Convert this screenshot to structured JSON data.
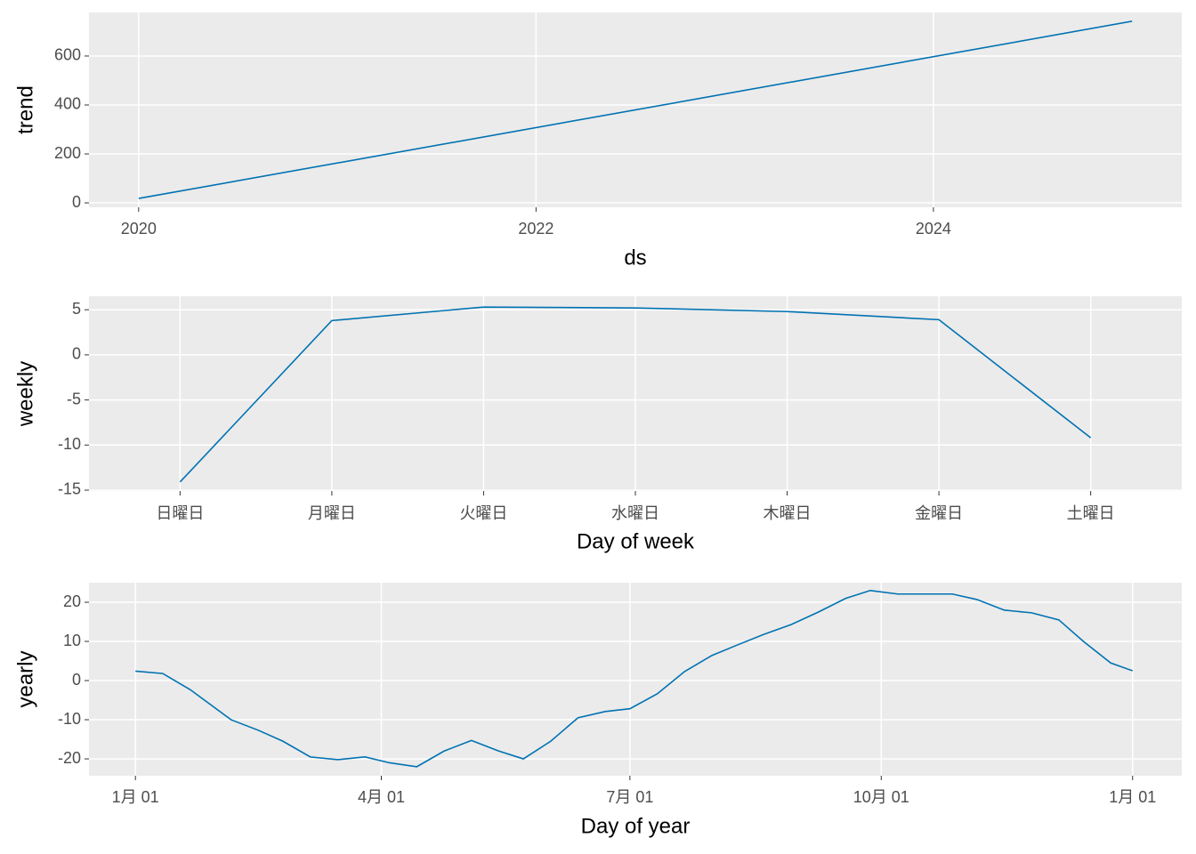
{
  "chart_data": [
    {
      "type": "line",
      "xlabel": "ds",
      "ylabel": "trend",
      "x": [
        2020,
        2025
      ],
      "series": [
        {
          "name": "trend",
          "color": "#0072B2",
          "values": [
            18,
            742
          ]
        }
      ],
      "xlim": [
        2019.75,
        2025.25
      ],
      "xticks": [
        2020,
        2022,
        2024
      ],
      "ylim": [
        -18,
        778
      ],
      "yticks": [
        0,
        200,
        400,
        600
      ],
      "grid": true
    },
    {
      "type": "line",
      "xlabel": "Day of week",
      "ylabel": "weekly",
      "categories": [
        "日曜日",
        "月曜日",
        "火曜日",
        "水曜日",
        "木曜日",
        "金曜日",
        "土曜日"
      ],
      "series": [
        {
          "name": "weekly",
          "color": "#0072B2",
          "values": [
            -14.1,
            3.8,
            5.3,
            5.2,
            4.8,
            3.9,
            -9.2
          ]
        }
      ],
      "ylim": [
        -15.1,
        6.5
      ],
      "yticks": [
        -15,
        -10,
        -5,
        0,
        5
      ],
      "grid": true
    },
    {
      "type": "line",
      "xlabel": "Day of year",
      "ylabel": "yearly",
      "x": [
        0,
        10,
        20,
        35,
        45,
        54,
        64,
        74,
        84,
        93,
        103,
        113,
        123,
        133,
        142,
        152,
        162,
        172,
        181,
        191,
        201,
        211,
        220,
        230,
        240,
        250,
        260,
        269,
        279,
        289,
        299,
        308,
        318,
        328,
        338,
        347,
        357,
        365
      ],
      "series": [
        {
          "name": "yearly",
          "color": "#0072B2",
          "values": [
            2.4,
            1.8,
            -2.3,
            -10,
            -12.7,
            -15.5,
            -19.5,
            -20.2,
            -19.5,
            -21,
            -22,
            -18,
            -15.3,
            -18,
            -20,
            -15.5,
            -9.5,
            -7.9,
            -7.2,
            -3.4,
            2.3,
            6.4,
            9,
            11.8,
            14.3,
            17.5,
            21,
            23,
            22.1,
            22.1,
            22.1,
            20.7,
            18,
            17.3,
            15.5,
            10,
            4.5,
            2.5
          ]
        }
      ],
      "xlim": [
        -17,
        383
      ],
      "xticks": [
        {
          "value": 0,
          "label": "1月 01"
        },
        {
          "value": 90,
          "label": "4月 01"
        },
        {
          "value": 181,
          "label": "7月 01"
        },
        {
          "value": 273,
          "label": "10月 01"
        },
        {
          "value": 365,
          "label": "1月 01"
        }
      ],
      "ylim": [
        -24.3,
        25
      ],
      "yticks": [
        -20,
        -10,
        0,
        10,
        20
      ],
      "grid": true
    }
  ]
}
